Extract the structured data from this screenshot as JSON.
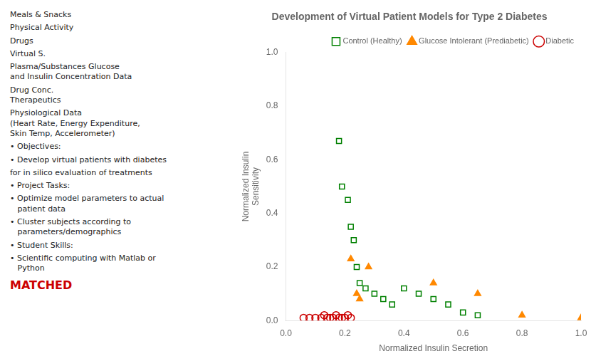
{
  "chart_data": {
    "type": "scatter",
    "title": "Development of Virtual Patient Models for Type 2 Diabetes",
    "x_label": "Normalized Insulin Secretion",
    "y_label": "Normalized Insulin\nSensitivity",
    "xlim": [
      0,
      1.0
    ],
    "ylim": [
      0,
      1.0
    ],
    "xticks": [
      {
        "value": 0,
        "label": "0.0"
      },
      0.2,
      0.4,
      0.6,
      0.8,
      {
        "value": 1.0,
        "label": "1.0"
      }
    ],
    "yticks": [
      {
        "value": 0,
        "label": "0.0"
      },
      0.2,
      0.4,
      0.6,
      0.8,
      {
        "value": 1.0,
        "label": "1.0"
      }
    ],
    "grid": false,
    "legend": "upper right",
    "series": [
      {
        "name": "Control (Healthy)",
        "color": "green",
        "marker": "square",
        "x": [
          0.18,
          0.19,
          0.21,
          0.22,
          0.23,
          0.24,
          0.25,
          0.27,
          0.3,
          0.33,
          0.36,
          0.4,
          0.45,
          0.5,
          0.55,
          0.6,
          0.65
        ],
        "values": [
          0.67,
          0.5,
          0.45,
          0.35,
          0.3,
          0.2,
          0.14,
          0.12,
          0.1,
          0.08,
          0.06,
          0.12,
          0.1,
          0.08,
          0.06,
          0.03,
          0.02
        ]
      },
      {
        "name": "Glucose Intolerant (Prediabetic)",
        "color": "#ff8800",
        "marker": "triangle",
        "x": [
          0.22,
          0.24,
          0.25,
          0.28,
          0.5,
          0.65,
          0.8,
          1.0
        ],
        "values": [
          0.23,
          0.1,
          0.08,
          0.2,
          0.14,
          0.1,
          0.02,
          0.01
        ]
      },
      {
        "name": "Diabetic",
        "color": "#cc0000",
        "marker": "circle",
        "x": [
          0.06,
          0.08,
          0.1,
          0.12,
          0.13,
          0.14,
          0.15,
          0.16,
          0.17,
          0.18,
          0.19,
          0.2,
          0.21,
          0.22
        ],
        "values": [
          0.01,
          0.01,
          0.01,
          0.01,
          0.02,
          0.01,
          0.01,
          0.01,
          0.02,
          0.01,
          0.01,
          0.01,
          0.02,
          0.01
        ]
      }
    ],
    "annotations": [
      "Meals & Snacks",
      "Physical Activity",
      "Drugs",
      "Virtual S.",
      "Plasma/Substances Glucose\nand Insulin Concentration Data",
      "Drug Conc.\nTherapeutics",
      "Physiological Data\n(Heart Rate, Energy Expenditure,\nSkin Temp, Accelerometer)",
      "• Objectives:",
      "• Develop virtual patients with diabetes",
      "for in silico evaluation of treatments",
      "• Project Tasks:",
      "• Optimize model parameters to actual\n   patient data",
      "• Cluster subjects according to\n   parameters/demographics",
      "• Student Skills:",
      "• Scientific computing with Matlab or\n   Python",
      "MATCHED"
    ]
  }
}
